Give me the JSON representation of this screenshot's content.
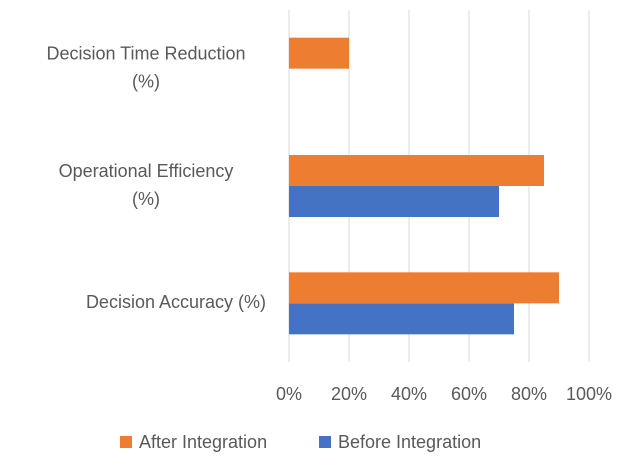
{
  "chart_data": {
    "type": "bar",
    "orientation": "horizontal",
    "categories": [
      "Decision Accuracy (%)",
      "Operational Efficiency (%)",
      "Decision Time Reduction (%)"
    ],
    "series": [
      {
        "name": "Before Integration",
        "color": "#4472c4",
        "values": [
          75,
          70,
          null
        ]
      },
      {
        "name": "After Integration",
        "color": "#ed7d31",
        "values": [
          90,
          85,
          20
        ]
      }
    ],
    "xlim": [
      0,
      100
    ],
    "xticks": [
      {
        "value": 0,
        "label": "0%"
      },
      {
        "value": 20,
        "label": "20%"
      },
      {
        "value": 40,
        "label": "40%"
      },
      {
        "value": 60,
        "label": "60%"
      },
      {
        "value": 80,
        "label": "80%"
      },
      {
        "value": 100,
        "label": "100%"
      }
    ],
    "grid": true,
    "legend": "bottom"
  }
}
